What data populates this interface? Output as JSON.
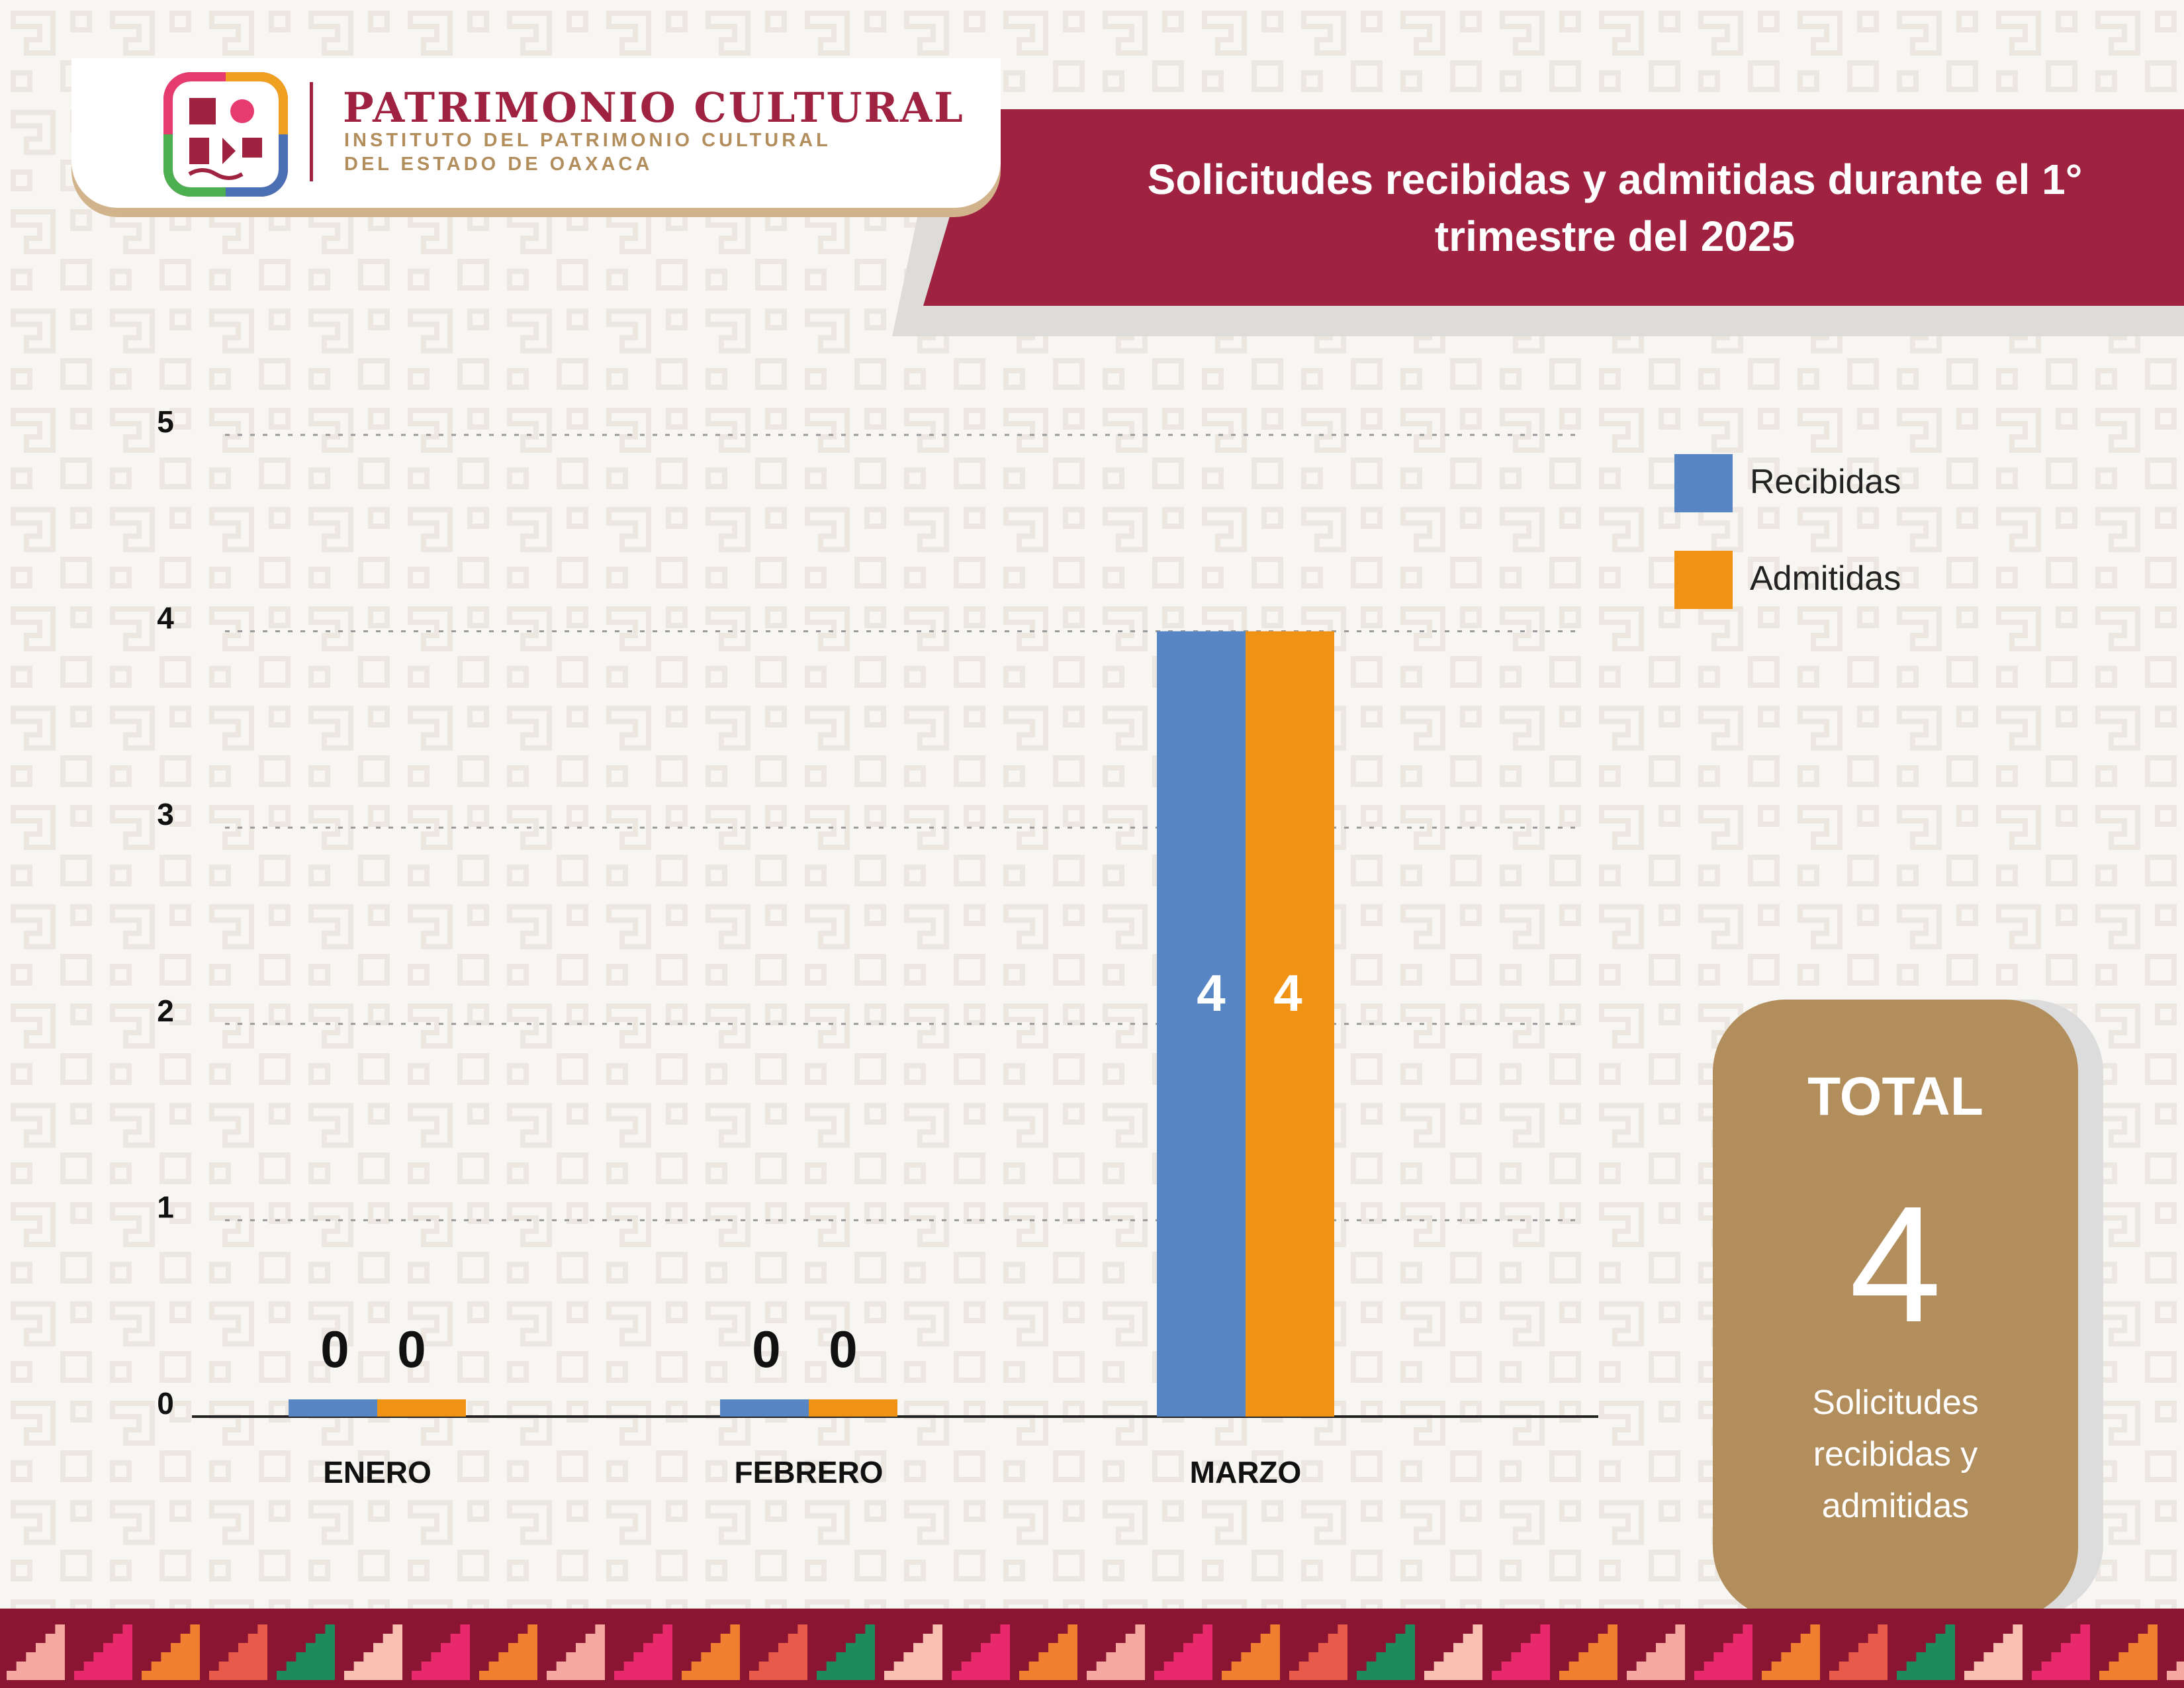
{
  "header": {
    "logo_title": "PATRIMONIO CULTURAL",
    "logo_subtitle_1": "INSTITUTO DEL PATRIMONIO CULTURAL",
    "logo_subtitle_2": "DEL ESTADO DE OAXACA",
    "banner_title": "Solicitudes recibidas y admitidas durante el 1° trimestre del 2025"
  },
  "colors": {
    "brand": "#9f2241",
    "gold": "#b38e5d",
    "recibidas": "#5886c4",
    "admitidas": "#f09314"
  },
  "total": {
    "title": "TOTAL",
    "value": "4",
    "caption": "Solicitudes recibidas y admitidas"
  },
  "chart_data": {
    "type": "bar",
    "title": "Solicitudes recibidas y admitidas durante el 1° trimestre del 2025",
    "categories": [
      "ENERO",
      "FEBRERO",
      "MARZO"
    ],
    "series": [
      {
        "name": "Recibidas",
        "values": [
          0,
          0,
          4
        ],
        "color": "#5886c4"
      },
      {
        "name": "Admitidas",
        "values": [
          0,
          0,
          4
        ],
        "color": "#f09314"
      }
    ],
    "ylim": [
      0,
      5
    ],
    "yticks": [
      0,
      1,
      2,
      3,
      4,
      5
    ],
    "grid": true,
    "legend_position": "right"
  }
}
